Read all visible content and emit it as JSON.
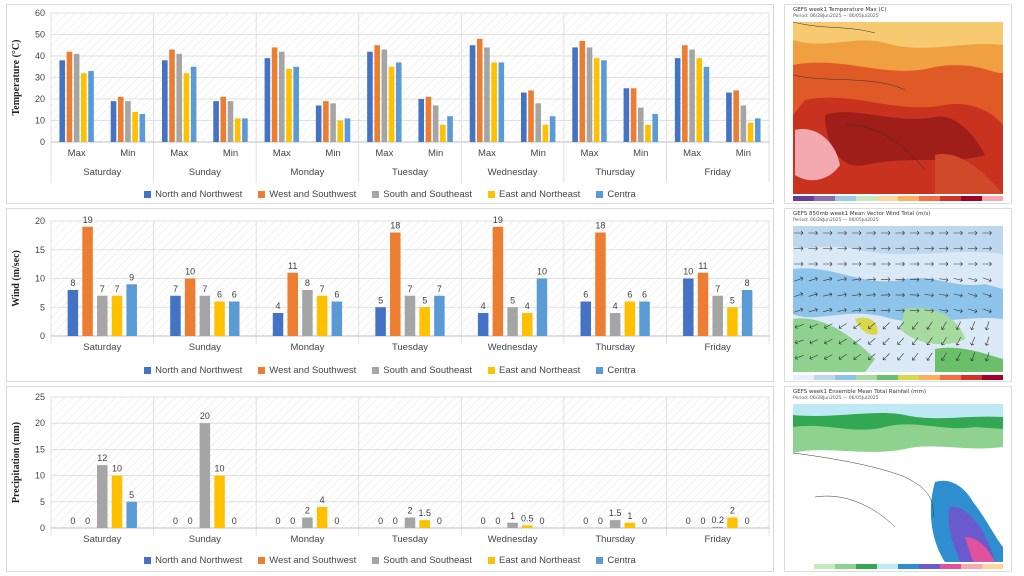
{
  "legend": [
    "North and Northwest",
    "West and Southwest",
    "South and Southeast",
    "East and Northeast",
    "Centra"
  ],
  "colors": [
    "#4472c4",
    "#ed7d31",
    "#a5a5a5",
    "#ffc000",
    "#5b9bd5"
  ],
  "chart_data": [
    {
      "type": "bar",
      "ylabel": "Temperature (°C)",
      "ylim": [
        0,
        60
      ],
      "yticks": [
        0,
        10,
        20,
        30,
        40,
        50,
        60
      ],
      "days": [
        "Saturday",
        "Sunday",
        "Monday",
        "Tuesday",
        "Wednesday",
        "Thursday",
        "Friday"
      ],
      "subcategories": [
        "Max",
        "Min"
      ],
      "series": [
        {
          "name": "North and Northwest",
          "values": [
            38,
            19,
            38,
            19,
            39,
            17,
            42,
            20,
            45,
            23,
            44,
            25,
            39,
            23
          ]
        },
        {
          "name": "West and Southwest",
          "values": [
            42,
            21,
            43,
            21,
            44,
            19,
            45,
            21,
            48,
            24,
            47,
            25,
            45,
            24
          ]
        },
        {
          "name": "South and Southeast",
          "values": [
            41,
            19,
            41,
            19,
            42,
            18,
            43,
            17,
            44,
            18,
            44,
            16,
            43,
            17
          ]
        },
        {
          "name": "East and Northeast",
          "values": [
            32,
            14,
            32,
            11,
            34,
            10,
            35,
            8,
            37,
            8,
            39,
            8,
            39,
            9
          ]
        },
        {
          "name": "Centra",
          "values": [
            33,
            13,
            35,
            11,
            35,
            11,
            37,
            12,
            37,
            12,
            38,
            13,
            35,
            11
          ]
        }
      ],
      "grid": true,
      "legend_position": "bottom"
    },
    {
      "type": "bar",
      "ylabel": "Wind (m/sec)",
      "ylim": [
        0,
        20
      ],
      "yticks": [
        0,
        5,
        10,
        15,
        20
      ],
      "categories": [
        "Saturday",
        "Sunday",
        "Monday",
        "Tuesday",
        "Wednesday",
        "Thursday",
        "Friday"
      ],
      "series": [
        {
          "name": "North and Northwest",
          "values": [
            8,
            7,
            4,
            5,
            4,
            6,
            10
          ]
        },
        {
          "name": "West and Southwest",
          "values": [
            19,
            10,
            11,
            18,
            19,
            18,
            11
          ]
        },
        {
          "name": "South and Southeast",
          "values": [
            7,
            7,
            8,
            7,
            5,
            4,
            7
          ]
        },
        {
          "name": "East and Northeast",
          "values": [
            7,
            6,
            7,
            5,
            4,
            6,
            5
          ]
        },
        {
          "name": "Centra",
          "values": [
            9,
            6,
            6,
            7,
            10,
            6,
            8
          ]
        }
      ],
      "data_labels": true,
      "grid": true,
      "legend_position": "bottom"
    },
    {
      "type": "bar",
      "ylabel": "Precipitation (mm)",
      "ylim": [
        0,
        25
      ],
      "yticks": [
        0,
        5,
        10,
        15,
        20,
        25
      ],
      "categories": [
        "Saturday",
        "Sunday",
        "Monday",
        "Tuesday",
        "Wednesday",
        "Thursday",
        "Friday"
      ],
      "series": [
        {
          "name": "North and Northwest",
          "values": [
            0,
            0,
            0,
            0,
            0,
            0,
            0
          ]
        },
        {
          "name": "West and Southwest",
          "values": [
            0,
            0,
            0,
            0,
            0,
            0,
            0
          ]
        },
        {
          "name": "South and Southeast",
          "values": [
            12,
            20,
            2,
            2,
            1,
            1.5,
            0.2
          ]
        },
        {
          "name": "East and Northeast",
          "values": [
            10,
            10,
            4,
            1.5,
            0.5,
            1,
            2
          ]
        },
        {
          "name": "Centra",
          "values": [
            5,
            0,
            0,
            0,
            0,
            0,
            0
          ]
        }
      ],
      "data_labels": true,
      "grid": true,
      "legend_position": "bottom"
    }
  ],
  "maps": [
    {
      "title": "GEFS week1 Temperature Max (C)",
      "period": "Period: 06/28Jun2025 — 06/05Jul2025"
    },
    {
      "title": "GEFS 850mb week1 Mean Vector Wind Total (m/s)",
      "period": "Period: 06/28Jun2025 — 06/05Jul2025"
    },
    {
      "title": "GEFS week1 Ensemble Mean Total Rainfall (mm)",
      "period": "Period: 06/28Jun2025 — 06/05Jul2025"
    }
  ]
}
